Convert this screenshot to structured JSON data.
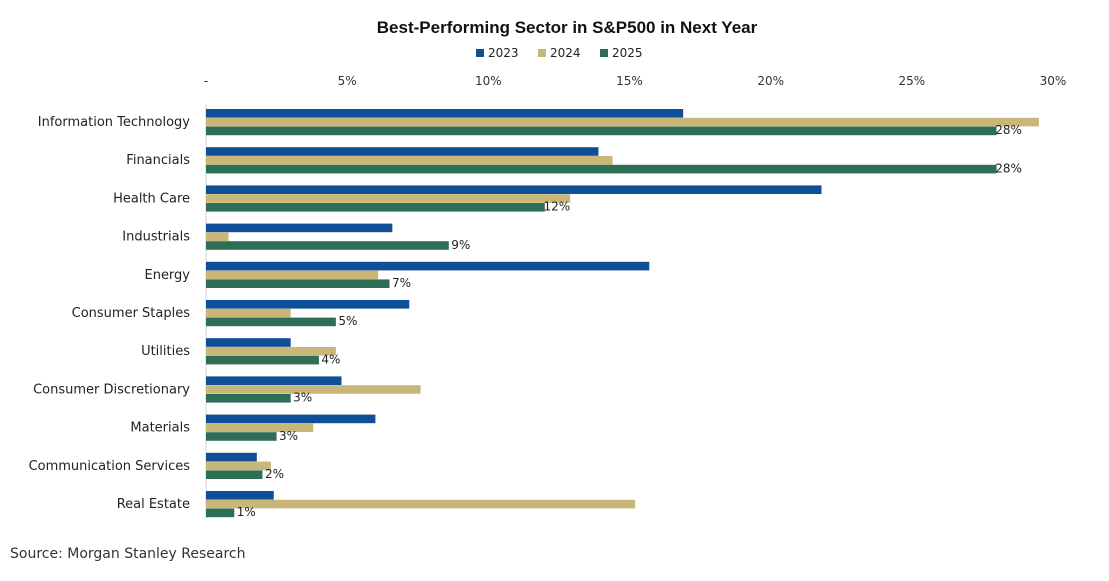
{
  "source": "Source: Morgan Stanley Research",
  "chart_data": {
    "type": "bar",
    "orientation": "horizontal",
    "title": "Best-Performing Sector in S&P500 in Next Year",
    "legend_position": "top-center",
    "x_ticks": [
      "-",
      "5%",
      "10%",
      "15%",
      "20%",
      "25%",
      "30%"
    ],
    "xlim": [
      0,
      30
    ],
    "grid": false,
    "categories": [
      "Information Technology",
      "Financials",
      "Health Care",
      "Industrials",
      "Energy",
      "Consumer Staples",
      "Utilities",
      "Consumer Discretionary",
      "Materials",
      "Communication Services",
      "Real Estate"
    ],
    "series": [
      {
        "name": "2023",
        "color": "#0e4f97",
        "values": [
          16.9,
          13.9,
          21.8,
          6.6,
          15.7,
          7.2,
          3.0,
          4.8,
          6.0,
          1.8,
          2.4
        ]
      },
      {
        "name": "2024",
        "color": "#c9b77a",
        "values": [
          29.5,
          14.4,
          12.9,
          0.8,
          6.1,
          3.0,
          4.6,
          7.6,
          3.8,
          2.3,
          15.2
        ]
      },
      {
        "name": "2025",
        "color": "#2e6e56",
        "values": [
          28.0,
          28.0,
          12.0,
          8.6,
          6.5,
          4.6,
          4.0,
          3.0,
          2.5,
          2.0,
          1.0
        ]
      }
    ],
    "data_labels": [
      "28%",
      "28%",
      "12%",
      "9%",
      "7%",
      "5%",
      "4%",
      "3%",
      "3%",
      "2%",
      "1%"
    ]
  }
}
